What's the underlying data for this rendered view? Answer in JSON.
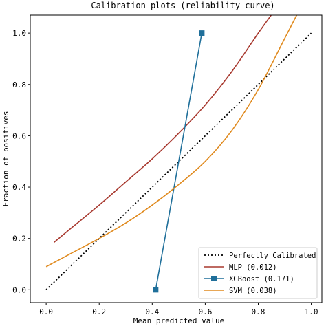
{
  "chart_data": {
    "type": "line",
    "title": "Calibration plots  (reliability curve)",
    "xlabel": "Mean predicted value",
    "ylabel": "Fraction of positives",
    "xlim": [
      -0.06,
      1.04
    ],
    "ylim": [
      -0.05,
      1.07
    ],
    "xticks": [
      0.0,
      0.2,
      0.4,
      0.6,
      0.8,
      1.0
    ],
    "xtick_labels": [
      "0.0",
      "0.2",
      "0.4",
      "0.6",
      "0.8",
      "1.0"
    ],
    "yticks": [
      0.0,
      0.2,
      0.4,
      0.6,
      0.8,
      1.0
    ],
    "ytick_labels": [
      "0.0",
      "0.2",
      "0.4",
      "0.6",
      "0.8",
      "1.0"
    ],
    "grid": false,
    "legend_position": "lower-right",
    "series": [
      {
        "name": "Perfectly Calibrated",
        "style": "dotted",
        "color": "#000000",
        "x": [
          0.0,
          1.0
        ],
        "y": [
          0.0,
          1.0
        ]
      },
      {
        "name": "MLP (0.012)",
        "style": "solid",
        "color": "#a8392f",
        "x": [
          0.03,
          0.1,
          0.2,
          0.3,
          0.4,
          0.5,
          0.6,
          0.7,
          0.8,
          0.87
        ],
        "y": [
          0.185,
          0.245,
          0.33,
          0.42,
          0.51,
          0.61,
          0.72,
          0.85,
          1.0,
          1.1
        ]
      },
      {
        "name": "XGBoost (0.171)",
        "style": "solid-square-markers",
        "color": "#1f6f9a",
        "x": [
          0.413,
          0.587
        ],
        "y": [
          0.0,
          1.0
        ]
      },
      {
        "name": "SVM (0.038)",
        "style": "solid",
        "color": "#e08a1e",
        "x": [
          0.0,
          0.1,
          0.2,
          0.3,
          0.4,
          0.5,
          0.6,
          0.7,
          0.8,
          0.9,
          0.96
        ],
        "y": [
          0.09,
          0.145,
          0.2,
          0.26,
          0.33,
          0.41,
          0.5,
          0.62,
          0.78,
          0.98,
          1.1
        ]
      }
    ]
  }
}
